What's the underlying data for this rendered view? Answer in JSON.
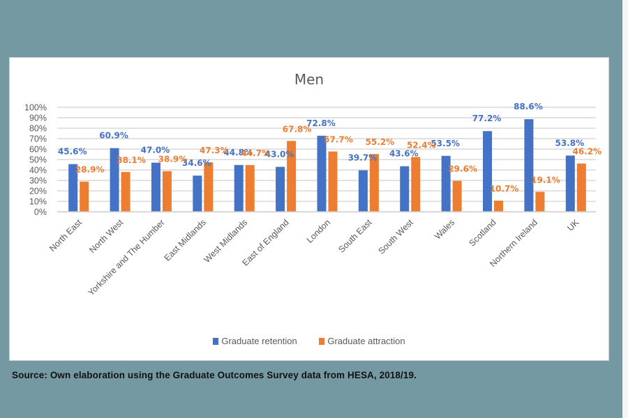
{
  "chart_data": {
    "type": "bar",
    "title": "Men",
    "xlabel": "",
    "ylabel": "",
    "ylim": [
      0,
      100
    ],
    "y_tick_step": 10,
    "y_tick_format": "percent",
    "y_ticks": [
      "0%",
      "10%",
      "20%",
      "30%",
      "40%",
      "50%",
      "60%",
      "70%",
      "80%",
      "90%",
      "100%"
    ],
    "grid": true,
    "legend_position": "bottom",
    "categories": [
      "North East",
      "North West",
      "Yorkshire and The Humber",
      "East Midlands",
      "West Midlands",
      "East of England",
      "London",
      "South East",
      "South West",
      "Wales",
      "Scotland",
      "Northern Ireland",
      "UK"
    ],
    "series": [
      {
        "name": "Graduate retention",
        "color": "#4472c4",
        "values": [
          45.6,
          60.9,
          47.0,
          34.6,
          44.8,
          43.0,
          72.8,
          39.7,
          43.6,
          53.5,
          77.2,
          88.6,
          53.8
        ],
        "labels": [
          "45.6%",
          "60.9%",
          "47.0%",
          "34.6%",
          "44.8%",
          "43.0%",
          "72.8%",
          "39.7%",
          "43.6%",
          "53.5%",
          "77.2%",
          "88.6%",
          "53.8%"
        ]
      },
      {
        "name": "Graduate attraction",
        "color": "#ed7d31",
        "values": [
          28.9,
          38.1,
          38.9,
          47.3,
          44.7,
          67.8,
          57.7,
          55.2,
          52.4,
          29.6,
          10.7,
          19.1,
          46.2
        ],
        "labels": [
          "28.9%",
          "38.1%",
          "38.9%",
          "47.3%",
          "44.7%",
          "67.8%",
          "57.7%",
          "55.2%",
          "52.4%",
          "29.6%",
          "10.7%",
          "19.1%",
          "46.2%"
        ]
      }
    ]
  },
  "source_note": "Source: Own elaboration using the Graduate Outcomes Survey data from HESA, 2018/19.",
  "colors": {
    "background": "#7599a2",
    "retention": "#4472c4",
    "attraction": "#ed7d31"
  }
}
